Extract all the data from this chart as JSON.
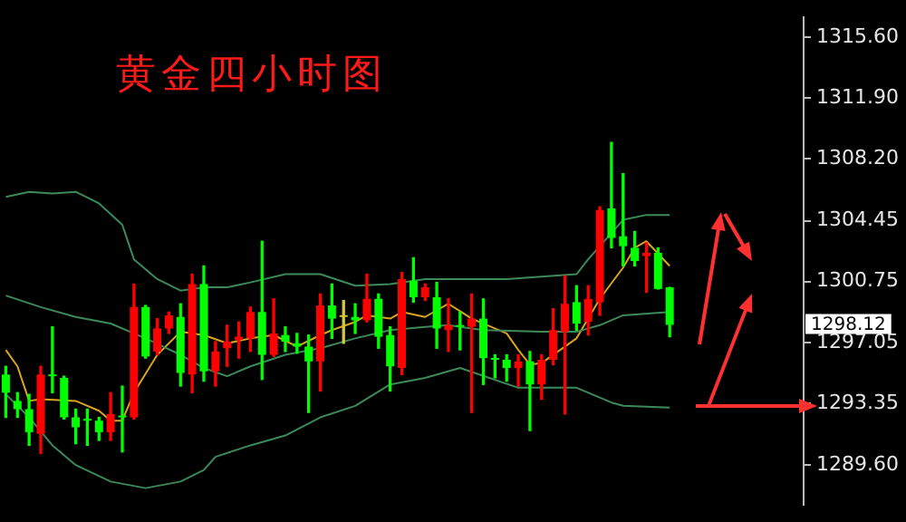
{
  "chart_data": {
    "type": "candlestick",
    "title": "黄金四小时图",
    "categories": [
      null,
      null,
      null,
      null,
      null,
      null,
      null,
      null,
      null,
      null,
      null,
      null,
      null,
      null,
      null,
      null,
      null,
      null,
      null,
      null,
      null,
      null,
      null,
      null,
      null,
      null,
      null,
      null,
      null,
      null,
      null,
      null,
      null,
      null,
      null,
      null,
      null,
      null,
      null,
      null,
      null,
      null,
      null,
      null,
      null,
      null,
      null,
      null,
      null,
      null,
      null,
      null,
      null,
      null,
      null,
      null,
      null,
      null,
      null,
      null,
      null,
      null,
      null,
      null,
      null,
      null,
      null,
      null,
      null
    ],
    "ohlc": [
      [
        1295.1,
        1295.6,
        1292.5,
        1294.0
      ],
      [
        1293.5,
        1294.0,
        1292.5,
        1293.0
      ],
      [
        1293.0,
        1293.9,
        1290.8,
        1291.6
      ],
      [
        1291.5,
        1295.6,
        1290.3,
        1295.1
      ],
      [
        1295.1,
        1298.0,
        1294.0,
        1295.0
      ],
      [
        1294.9,
        1295.0,
        1292.4,
        1292.5
      ],
      [
        1292.5,
        1293.0,
        1290.9,
        1291.9
      ],
      [
        1292.4,
        1293.0,
        1290.8,
        1292.3
      ],
      [
        1292.3,
        1292.5,
        1291.1,
        1291.6
      ],
      [
        1291.6,
        1294.0,
        1291.1,
        1292.7
      ],
      [
        1292.6,
        1294.4,
        1290.4,
        1292.5
      ],
      [
        1292.5,
        1300.6,
        1292.4,
        1299.2
      ],
      [
        1299.2,
        1299.3,
        1296.1,
        1296.2
      ],
      [
        1296.5,
        1298.5,
        1296.3,
        1297.9
      ],
      [
        1297.9,
        1298.9,
        1297.6,
        1298.7
      ],
      [
        1298.6,
        1299.4,
        1294.4,
        1295.2
      ],
      [
        1295.1,
        1301.2,
        1294.0,
        1300.6
      ],
      [
        1300.6,
        1301.7,
        1294.7,
        1295.3
      ],
      [
        1295.3,
        1297.1,
        1294.4,
        1296.5
      ],
      [
        1296.7,
        1298.1,
        1295.6,
        1297.1
      ],
      [
        1297.2,
        1298.3,
        1296.1,
        1297.4
      ],
      [
        1297.3,
        1299.2,
        1296.5,
        1298.9
      ],
      [
        1298.9,
        1303.2,
        1294.8,
        1296.3
      ],
      [
        1296.3,
        1299.7,
        1296.2,
        1297.6
      ],
      [
        1297.5,
        1298.0,
        1296.5,
        1297.1
      ],
      [
        1297.0,
        1297.6,
        1296.4,
        1296.8
      ],
      [
        1296.8,
        1297.5,
        1292.8,
        1295.9
      ],
      [
        1295.9,
        1300.0,
        1294.1,
        1299.3
      ],
      [
        1299.3,
        1300.6,
        1297.3,
        1298.5
      ],
      [
        1298.6,
        1299.6,
        1297.0,
        1298.6
      ],
      [
        1298.6,
        1299.4,
        1297.6,
        1298.4
      ],
      [
        1298.4,
        1301.2,
        1298.3,
        1299.7
      ],
      [
        1299.7,
        1300.0,
        1296.7,
        1297.4
      ],
      [
        1297.5,
        1298.0,
        1294.1,
        1295.6
      ],
      [
        1295.5,
        1301.3,
        1295.1,
        1300.9
      ],
      [
        1300.8,
        1302.2,
        1299.5,
        1299.8
      ],
      [
        1299.8,
        1300.6,
        1299.6,
        1300.4
      ],
      [
        1299.8,
        1300.7,
        1296.7,
        1297.9
      ],
      [
        1297.8,
        1299.7,
        1296.5,
        1298.1
      ],
      [
        1298.1,
        1298.9,
        1296.6,
        1298.0
      ],
      [
        1298.0,
        1300.0,
        1292.8,
        1298.5
      ],
      [
        1298.5,
        1299.7,
        1294.5,
        1296.1
      ],
      [
        1296.1,
        1296.3,
        1294.9,
        1296.0
      ],
      [
        1296.0,
        1296.3,
        1294.7,
        1295.5
      ],
      [
        1295.5,
        1296.3,
        1294.4,
        1295.9
      ],
      [
        1295.9,
        1296.5,
        1291.7,
        1294.5
      ],
      [
        1294.5,
        1296.3,
        1293.6,
        1296.0
      ],
      [
        1296.0,
        1299.1,
        1295.7,
        1297.8
      ],
      [
        1297.7,
        1301.1,
        1292.7,
        1299.4
      ],
      [
        1299.5,
        1300.5,
        1297.8,
        1298.2
      ],
      [
        1298.3,
        1300.5,
        1297.5,
        1299.7
      ],
      [
        1299.5,
        1305.3,
        1298.7,
        1305.1
      ],
      [
        1305.2,
        1309.2,
        1302.8,
        1303.4
      ],
      [
        1303.5,
        1307.3,
        1301.7,
        1302.9
      ],
      [
        1302.8,
        1303.8,
        1301.7,
        1302.0
      ],
      [
        1302.3,
        1303.1,
        1300.1,
        1302.5
      ],
      [
        1302.5,
        1302.8,
        1300.3,
        1300.3
      ],
      [
        1300.4,
        1300.4,
        1297.4,
        1298.12
      ],
      null,
      null,
      null,
      null,
      null,
      null,
      null,
      null,
      null,
      null,
      null
    ],
    "colors": [
      "#00ff00",
      "#00ff00",
      "#00ff00",
      "#ff0000",
      "#00ff00",
      "#00ff00",
      "#00ff00",
      "#00ff00",
      "#00ff00",
      "#ff0000",
      "#00ff00",
      "#ff0000",
      "#00ff00",
      "#ff0000",
      "#ff0000",
      "#00ff00",
      "#ff0000",
      "#00ff00",
      "#ff0000",
      "#ff0000",
      "#ff0000",
      "#ff0000",
      "#00ff00",
      "#ff0000",
      "#00ff00",
      "#00ff00",
      "#00ff00",
      "#ff0000",
      "#00ff00",
      "#d2c83c",
      "#00ff00",
      "#ff0000",
      "#00ff00",
      "#00ff00",
      "#ff0000",
      "#00ff00",
      "#ff0000",
      "#00ff00",
      "#ff0000",
      "#00ff00",
      "#ff0000",
      "#00ff00",
      "#00ff00",
      "#00ff00",
      "#ff0000",
      "#00ff00",
      "#ff0000",
      "#ff0000",
      "#ff0000",
      "#00ff00",
      "#ff0000",
      "#ff0000",
      "#00ff00",
      "#00ff00",
      "#00ff00",
      "#ff0000",
      "#00ff00",
      "#00ff00",
      null,
      null,
      null,
      null,
      null,
      null,
      null,
      null,
      null,
      null,
      null
    ],
    "series": [
      {
        "type": "line",
        "color": "#3c8a5a",
        "values": [
          1305.9,
          null,
          1306.2,
          null,
          1306.1,
          null,
          1306.2,
          null,
          1305.5,
          null,
          1304.2,
          1302.1,
          null,
          1300.9,
          null,
          1300.2,
          null,
          1300.4,
          null,
          1300.4,
          null,
          1300.7,
          null,
          null,
          1301.2,
          null,
          null,
          1301.2,
          null,
          null,
          1300.5,
          null,
          null,
          1300.6,
          null,
          null,
          1300.9,
          null,
          null,
          null,
          null,
          null,
          null,
          1300.9,
          null,
          null,
          null,
          null,
          null,
          1301.2,
          1302.1,
          null,
          1303.7,
          1304.5,
          null,
          1304.8,
          null,
          1304.8,
          null,
          null,
          null,
          null,
          null,
          null,
          null,
          null,
          null,
          null,
          null
        ]
      },
      {
        "type": "line",
        "color": "#3c8a5a",
        "values": [
          1299.9,
          null,
          null,
          1299.2,
          null,
          null,
          1298.6,
          null,
          null,
          1298.2,
          null,
          null,
          1297.3,
          null,
          null,
          1296.3,
          null,
          1295.5,
          null,
          1295.0,
          null,
          1295.6,
          null,
          null,
          1296.3,
          null,
          null,
          1296.7,
          null,
          null,
          1297.3,
          null,
          null,
          1297.8,
          null,
          null,
          1298.0,
          null,
          1298.1,
          null,
          null,
          1297.8,
          null,
          null,
          null,
          null,
          1297.7,
          null,
          null,
          1297.7,
          null,
          1298.1,
          null,
          1298.7,
          null,
          null,
          null,
          1298.9,
          null,
          null,
          null,
          null,
          null,
          null,
          null,
          null,
          null,
          null,
          null
        ]
      },
      {
        "type": "line",
        "color": "#3c8a5a",
        "values": [
          1293.9,
          null,
          1292.5,
          null,
          1290.8,
          null,
          1289.6,
          null,
          null,
          1288.6,
          null,
          null,
          1288.2,
          null,
          null,
          1288.6,
          null,
          1289.3,
          1290.1,
          null,
          null,
          1290.8,
          null,
          null,
          1291.4,
          null,
          null,
          1292.5,
          null,
          null,
          1293.2,
          null,
          null,
          1294.5,
          null,
          null,
          1294.9,
          null,
          null,
          1295.5,
          null,
          null,
          null,
          null,
          1294.3,
          null,
          null,
          null,
          null,
          1294.3,
          null,
          null,
          1293.4,
          1293.2,
          null,
          null,
          null,
          1293.1,
          null,
          null,
          null,
          null,
          null,
          null,
          null,
          null,
          null,
          null,
          null
        ]
      },
      {
        "type": "line",
        "color": "#d9a520",
        "values": [
          1296.6,
          1295.6,
          1293.5,
          1293.6,
          null,
          null,
          1293.5,
          null,
          1292.9,
          1292.3,
          1292.3,
          1294.0,
          null,
          1296.3,
          null,
          1297.7,
          null,
          1297.5,
          null,
          1297.0,
          null,
          1297.3,
          null,
          1297.5,
          null,
          1296.8,
          null,
          1297.5,
          1297.8,
          null,
          1298.3,
          1298.7,
          null,
          1298.5,
          1298.9,
          null,
          1298.6,
          null,
          1299.4,
          null,
          1298.5,
          null,
          null,
          1297.6,
          1296.6,
          1295.7,
          1295.8,
          null,
          null,
          1297.3,
          null,
          1299.7,
          null,
          1301.6,
          1302.8,
          1303.2,
          null,
          1301.7,
          null,
          null,
          null,
          null,
          null,
          null,
          null,
          null,
          null,
          null,
          null
        ]
      }
    ],
    "ylim": [
      1287.2,
      1316.8
    ],
    "yticks": [
      {
        "value": 1289.6,
        "label": "1289.60"
      },
      {
        "value": 1293.35,
        "label": "1293.35"
      },
      {
        "value": 1297.05,
        "label": "1297.05"
      },
      {
        "value": 1300.75,
        "label": "1300.75"
      },
      {
        "value": 1304.45,
        "label": "1304.45"
      },
      {
        "value": 1308.2,
        "label": "1308.20"
      },
      {
        "value": 1311.9,
        "label": "1311.90"
      },
      {
        "value": 1315.6,
        "label": "1315.60"
      }
    ],
    "annotations": [
      "1298.12"
    ],
    "grid": false,
    "legend": false,
    "tick_labels": "y"
  }
}
